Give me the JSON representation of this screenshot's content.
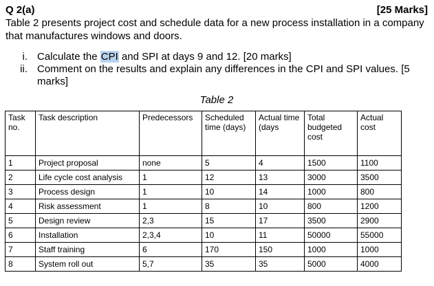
{
  "question": {
    "id": "Q 2(a)",
    "marks": "[25 Marks]",
    "intro": "Table 2 presents project cost and schedule data for a new process installation in a company that manufactures windows and doors.",
    "items": [
      {
        "num": "i.",
        "before": "Calculate the ",
        "highlight": "CPI",
        "after": " and SPI at days 9 and 12. [20 marks]"
      },
      {
        "num": "ii.",
        "before": "Comment on the results and explain any differences in the CPI and SPI values. [5 marks]",
        "highlight": "",
        "after": ""
      }
    ]
  },
  "table": {
    "caption": "Table 2",
    "headers": [
      "Task no.",
      "Task description",
      "Predecessors",
      "Scheduled time (days)",
      "Actual time (days",
      "Total budgeted cost",
      "Actual cost"
    ],
    "rows": [
      [
        "1",
        "Project proposal",
        "none",
        "5",
        "4",
        "1500",
        "1100"
      ],
      [
        "2",
        "Life cycle cost analysis",
        "1",
        "12",
        "13",
        "3000",
        "3500"
      ],
      [
        "3",
        "Process design",
        "1",
        "10",
        "14",
        "1000",
        "800"
      ],
      [
        "4",
        "Risk assessment",
        "1",
        "8",
        "10",
        "800",
        "1200"
      ],
      [
        "5",
        "Design review",
        "2,3",
        "15",
        "17",
        "3500",
        "2900"
      ],
      [
        "6",
        "Installation",
        "2,3,4",
        "10",
        "11",
        "50000",
        "55000"
      ],
      [
        "7",
        "Staff training",
        "6",
        "170",
        "150",
        "1000",
        "1000"
      ],
      [
        "8",
        "System roll out",
        "5,7",
        "35",
        "35",
        "5000",
        "4000"
      ]
    ]
  },
  "colors": {
    "highlight": "#b9d3ee",
    "text": "#000000"
  }
}
